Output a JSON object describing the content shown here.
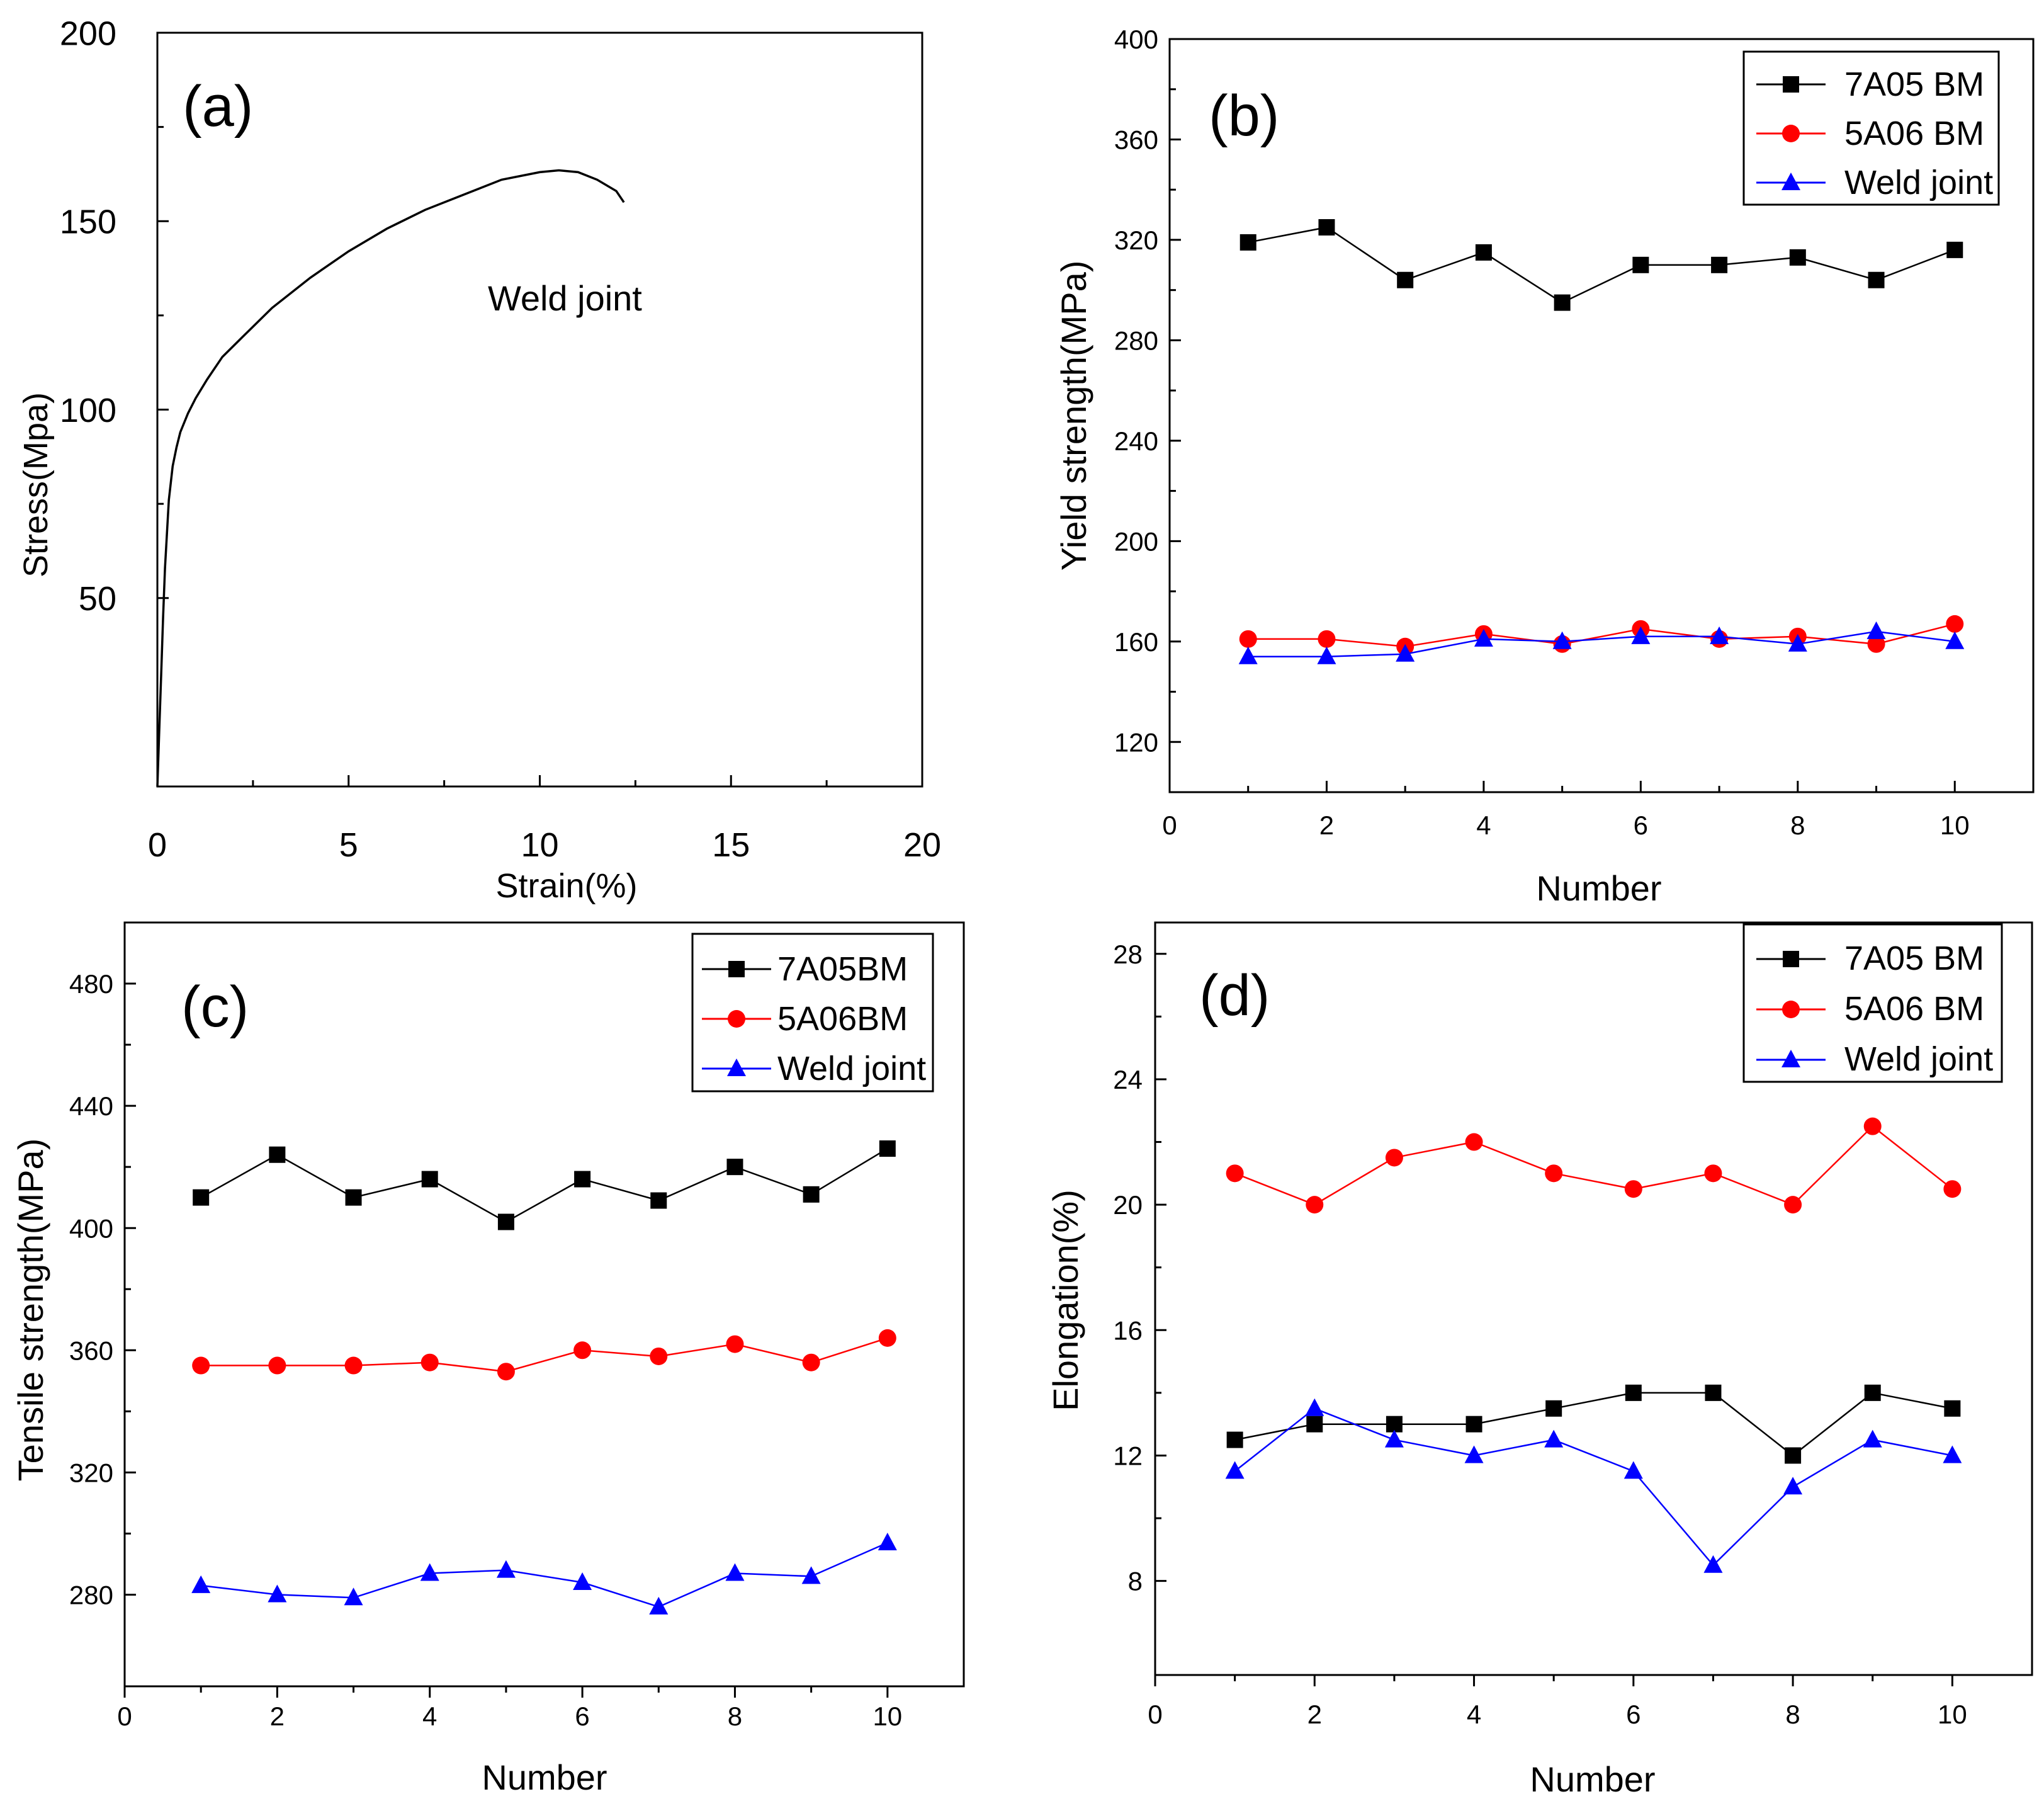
{
  "colors": {
    "s7a05": "#000000",
    "s5a06": "#ff0000",
    "weld": "#0000ff",
    "curve": "#000000"
  },
  "chart_data": [
    {
      "id": "a",
      "type": "line",
      "panel_label": "(a)",
      "xlabel": "Strain(%)",
      "ylabel": "Stress(Mpa)",
      "xlim": [
        0,
        20
      ],
      "ylim": [
        0,
        200
      ],
      "xticks": [
        0,
        5,
        10,
        15,
        20
      ],
      "yticks": [
        50,
        100,
        150,
        200
      ],
      "annotation": "Weld joint",
      "series": [
        {
          "name": "Weld joint",
          "colorKey": "curve",
          "marker": "none",
          "x": [
            0,
            0.05,
            0.1,
            0.15,
            0.2,
            0.3,
            0.4,
            0.5,
            0.6,
            0.8,
            1.0,
            1.3,
            1.7,
            2.2,
            3.0,
            4.0,
            5.0,
            6.0,
            7.0,
            8.0,
            9.0,
            10.0,
            10.5,
            11.0,
            11.5,
            12.0,
            12.2
          ],
          "y": [
            0,
            15,
            30,
            45,
            58,
            76,
            85,
            90,
            94,
            99,
            103,
            108,
            114,
            119,
            127,
            135,
            142,
            148,
            153,
            157,
            161,
            163,
            163.5,
            163,
            161,
            158,
            155
          ]
        }
      ]
    },
    {
      "id": "b",
      "type": "line",
      "panel_label": "(b)",
      "xlabel": "Number",
      "ylabel": "Yield strength(MPa)",
      "xlim": [
        0,
        11
      ],
      "ylim": [
        100,
        400
      ],
      "xticks": [
        0,
        2,
        4,
        6,
        8,
        10
      ],
      "yticks": [
        120,
        160,
        200,
        240,
        280,
        320,
        360,
        400
      ],
      "legend_position": "top-right",
      "x": [
        1,
        2,
        3,
        4,
        5,
        6,
        7,
        8,
        9,
        10
      ],
      "series": [
        {
          "name": "7A05 BM",
          "colorKey": "s7a05",
          "marker": "square",
          "values": [
            319,
            325,
            304,
            315,
            295,
            310,
            310,
            313,
            304,
            316
          ]
        },
        {
          "name": "5A06 BM",
          "colorKey": "s5a06",
          "marker": "circle",
          "values": [
            161,
            161,
            158,
            163,
            159,
            165,
            161,
            162,
            159,
            167
          ]
        },
        {
          "name": "Weld joint",
          "colorKey": "weld",
          "marker": "triangle",
          "values": [
            154,
            154,
            155,
            161,
            160,
            162,
            162,
            159,
            164,
            160
          ]
        }
      ]
    },
    {
      "id": "c",
      "type": "line",
      "panel_label": "(c)",
      "xlabel": "Number",
      "ylabel": "Tensile strength(MPa)",
      "xlim": [
        0,
        11
      ],
      "ylim": [
        250,
        500
      ],
      "xticks": [
        0,
        2,
        4,
        6,
        8,
        10
      ],
      "yticks": [
        280,
        320,
        360,
        400,
        440,
        480
      ],
      "legend_position": "top-right",
      "x": [
        1,
        2,
        3,
        4,
        5,
        6,
        7,
        8,
        9,
        10
      ],
      "series": [
        {
          "name": "7A05BM",
          "colorKey": "s7a05",
          "marker": "square",
          "values": [
            410,
            424,
            410,
            416,
            402,
            416,
            409,
            420,
            411,
            426
          ]
        },
        {
          "name": "5A06BM",
          "colorKey": "s5a06",
          "marker": "circle",
          "values": [
            355,
            355,
            355,
            356,
            353,
            360,
            358,
            362,
            356,
            364
          ]
        },
        {
          "name": "Weld joint",
          "colorKey": "weld",
          "marker": "triangle",
          "values": [
            283,
            280,
            279,
            287,
            288,
            284,
            276,
            287,
            286,
            297
          ]
        }
      ]
    },
    {
      "id": "d",
      "type": "line",
      "panel_label": "(d)",
      "xlabel": "Number",
      "ylabel": "Elongation(%)",
      "xlim": [
        0,
        11
      ],
      "ylim": [
        5,
        29
      ],
      "xticks": [
        0,
        2,
        4,
        6,
        8,
        10
      ],
      "yticks": [
        8,
        12,
        16,
        20,
        24,
        28
      ],
      "legend_position": "top-right",
      "x": [
        1,
        2,
        3,
        4,
        5,
        6,
        7,
        8,
        9,
        10
      ],
      "series": [
        {
          "name": "7A05 BM",
          "colorKey": "s7a05",
          "marker": "square",
          "values": [
            12.5,
            13,
            13,
            13,
            13.5,
            14,
            14,
            12,
            14,
            13.5
          ]
        },
        {
          "name": "5A06 BM",
          "colorKey": "s5a06",
          "marker": "circle",
          "values": [
            21,
            20,
            21.5,
            22,
            21,
            20.5,
            21,
            20,
            22.5,
            20.5
          ]
        },
        {
          "name": "Weld joint",
          "colorKey": "weld",
          "marker": "triangle",
          "values": [
            11.5,
            13.5,
            12.5,
            12,
            12.5,
            11.5,
            8.5,
            11,
            12.5,
            12
          ]
        }
      ]
    }
  ]
}
